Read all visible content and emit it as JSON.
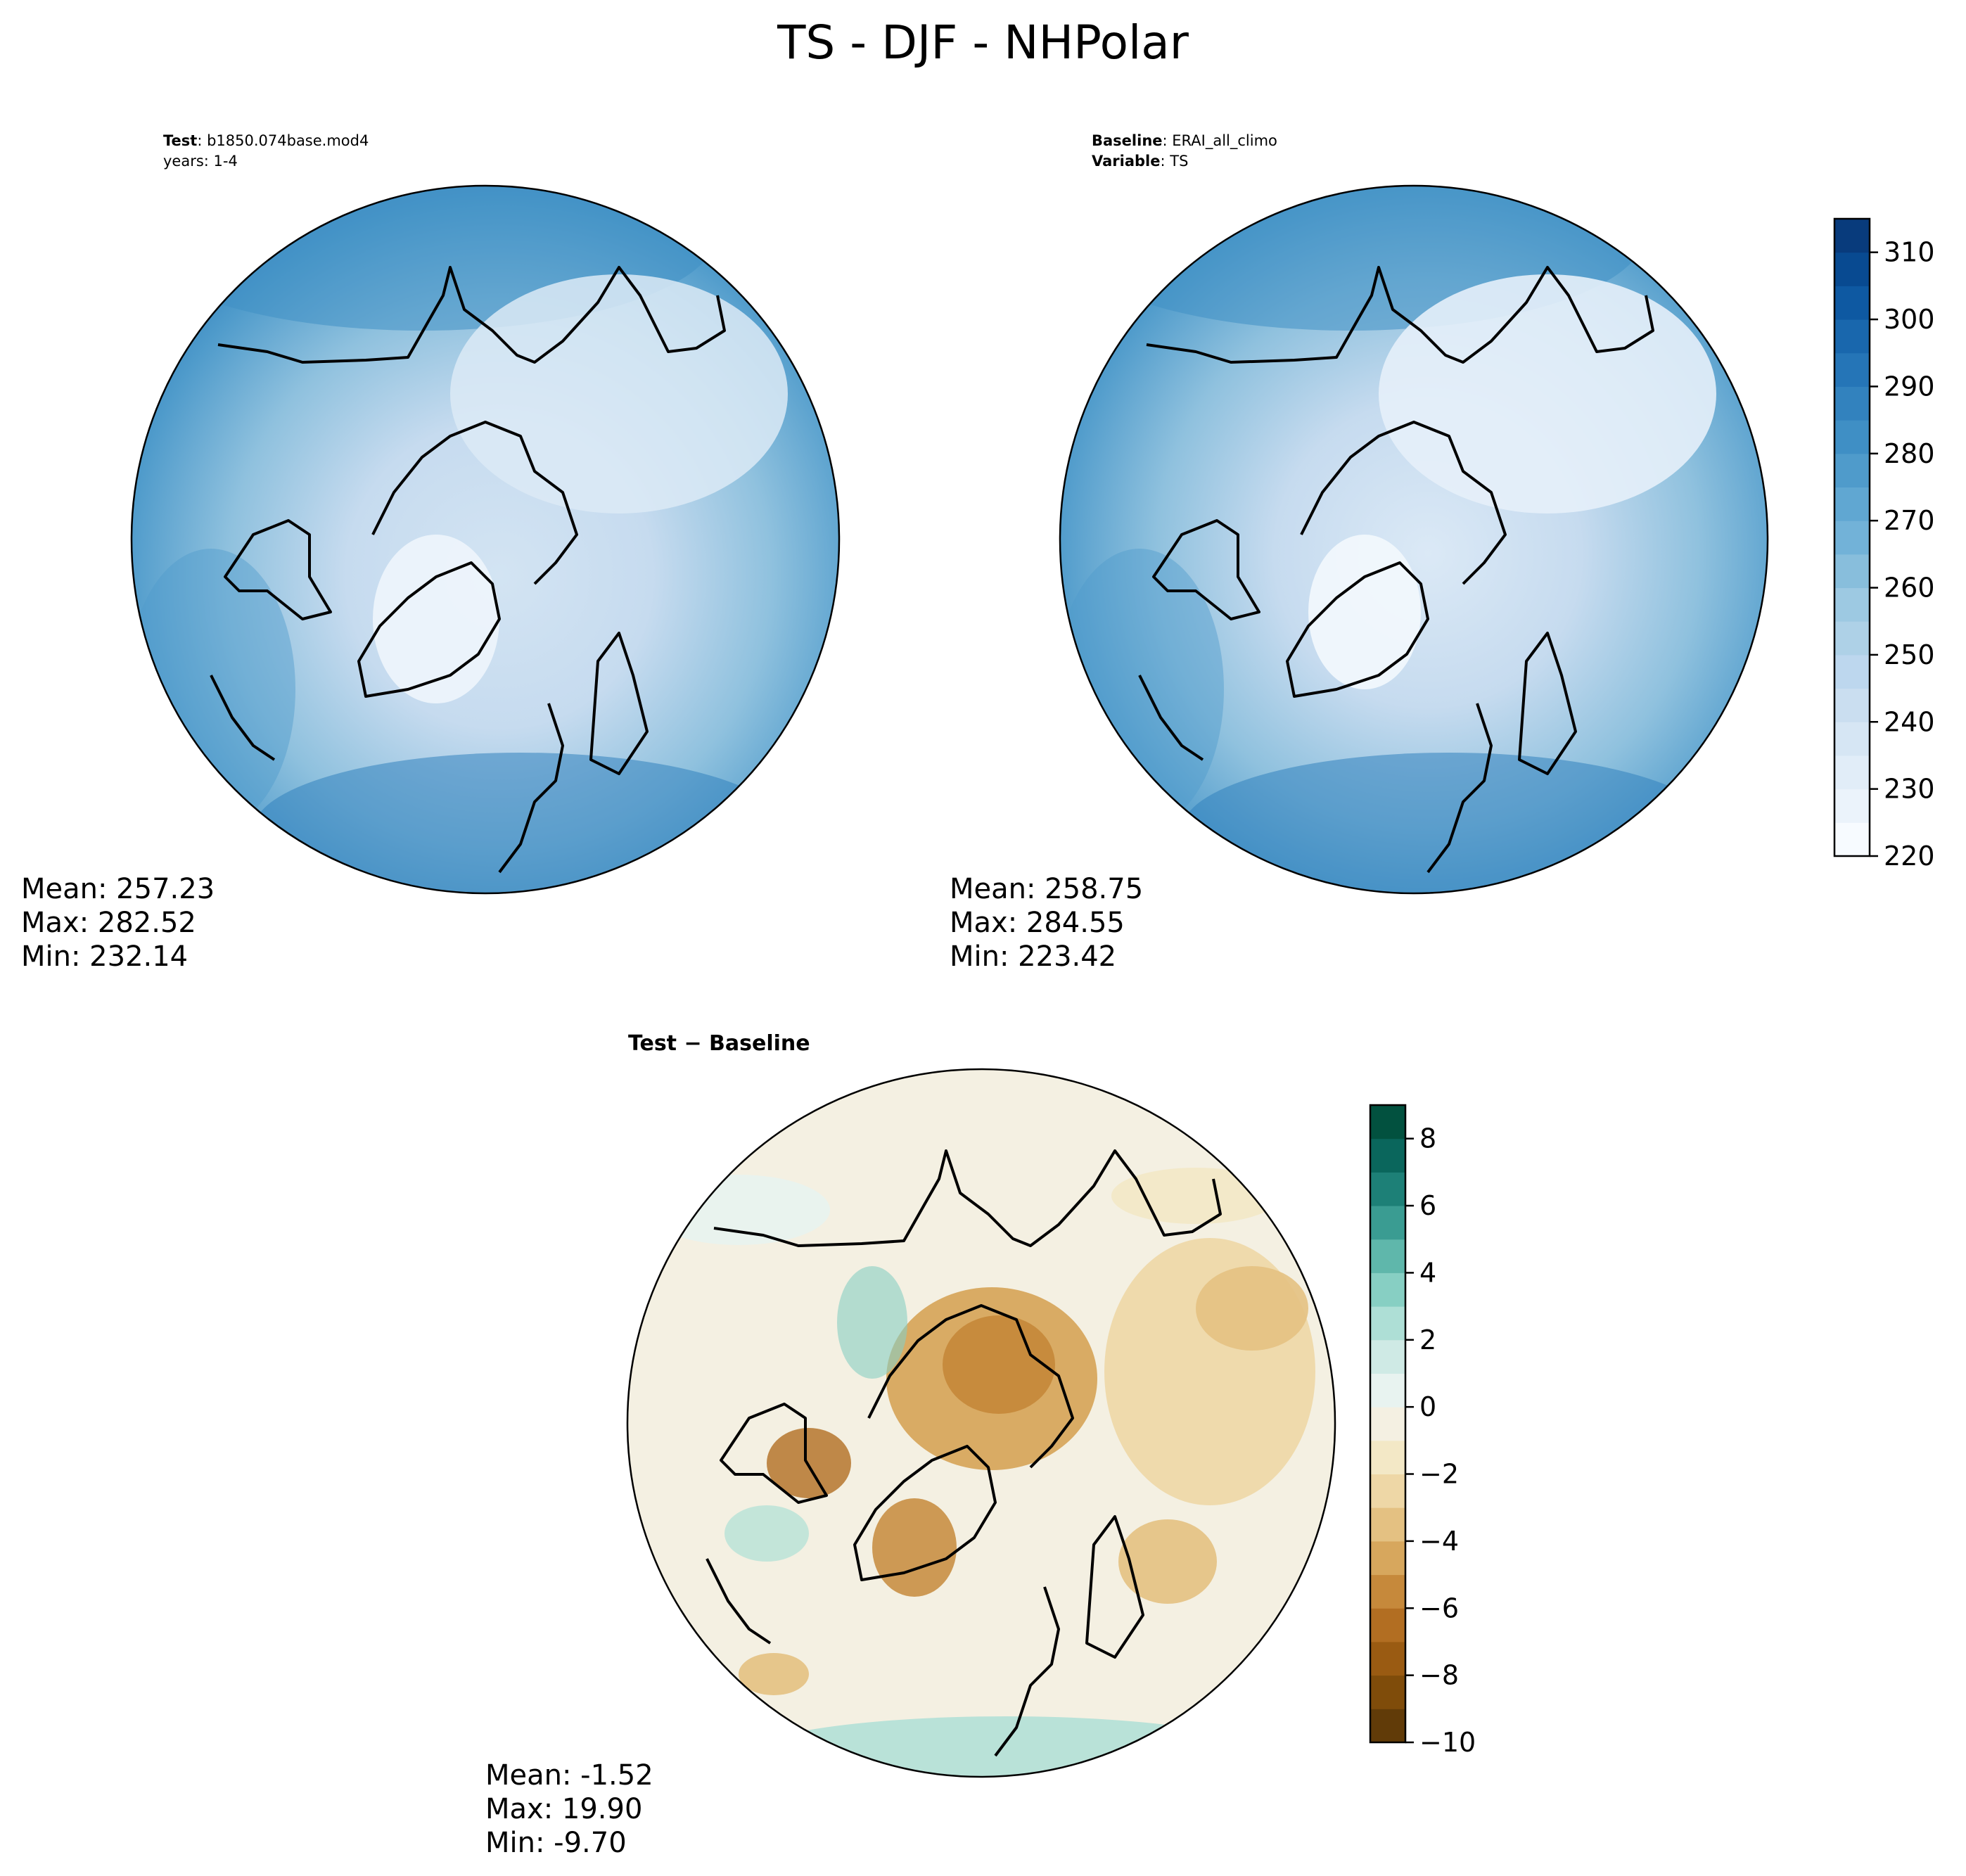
{
  "figure": {
    "title": "TS - DJF - NHPolar"
  },
  "panels": {
    "test": {
      "label_key": "Test",
      "label_value": ": b1850.074base.mod4",
      "line2": "years: 1-4",
      "stats": {
        "mean": "Mean: 257.23",
        "max": "Max: 282.52",
        "min": "Min: 232.14"
      }
    },
    "baseline": {
      "label_key": "Baseline",
      "label_value": ": ERAI_all_climo",
      "line2_key": "Variable",
      "line2_value": ": TS",
      "stats": {
        "mean": "Mean: 258.75",
        "max": "Max: 284.55",
        "min": "Min: 223.42"
      }
    },
    "diff": {
      "title": "Test − Baseline",
      "stats": {
        "mean": "Mean: -1.52",
        "max": "Max: 19.90",
        "min": "Min: -9.70"
      }
    }
  },
  "chart_data": [
    {
      "type": "heatmap",
      "projection": "north polar stereographic",
      "panel": "test",
      "colormap": "Blues",
      "colorbar_shared_with": "baseline",
      "summary": {
        "mean": 257.23,
        "max": 282.52,
        "min": 232.14
      }
    },
    {
      "type": "heatmap",
      "projection": "north polar stereographic",
      "panel": "baseline",
      "colormap": "Blues",
      "summary": {
        "mean": 258.75,
        "max": 284.55,
        "min": 223.42
      },
      "colorbar": {
        "levels": [
          220,
          225,
          230,
          235,
          240,
          245,
          250,
          255,
          260,
          265,
          270,
          275,
          280,
          285,
          290,
          295,
          300,
          305,
          310,
          315
        ],
        "range": [
          220,
          315
        ],
        "ticks": [
          220,
          230,
          240,
          250,
          260,
          270,
          280,
          290,
          300,
          310
        ],
        "tick_labels": [
          "220",
          "230",
          "240",
          "250",
          "260",
          "270",
          "280",
          "290",
          "300",
          "310"
        ],
        "colors": [
          "#f7fbff",
          "#ebf3fb",
          "#e1edf8",
          "#d6e6f4",
          "#cadef0",
          "#bdd7ee",
          "#aed1e7",
          "#9dc9e2",
          "#88bedc",
          "#72b2d8",
          "#60a7d2",
          "#4f9bcb",
          "#3f8fc5",
          "#3282be",
          "#2575b7",
          "#1967ad",
          "#0e59a2",
          "#084a91",
          "#083b7c"
        ]
      }
    },
    {
      "type": "heatmap",
      "projection": "north polar stereographic",
      "panel": "diff",
      "colormap": "BrBG",
      "summary": {
        "mean": -1.52,
        "max": 19.9,
        "min": -9.7
      },
      "colorbar": {
        "levels": [
          -10,
          -9,
          -8,
          -7,
          -6,
          -5,
          -4,
          -3,
          -2,
          -1,
          0,
          1,
          2,
          3,
          4,
          5,
          6,
          7,
          8,
          9
        ],
        "range": [
          -10,
          9
        ],
        "ticks": [
          -10,
          -8,
          -6,
          -4,
          -2,
          0,
          2,
          4,
          6,
          8
        ],
        "tick_labels": [
          "−10",
          "−8",
          "−6",
          "−4",
          "−2",
          "0",
          "2",
          "4",
          "6",
          "8"
        ],
        "colors": [
          "#613b08",
          "#7f4c0a",
          "#9a5b12",
          "#b26e22",
          "#c6893b",
          "#d7a75d",
          "#e4c182",
          "#eed7a6",
          "#f3e8c6",
          "#f4f0e2",
          "#e8f3f0",
          "#cfeae5",
          "#aedfd6",
          "#87cfc3",
          "#5fb7ab",
          "#3a9c92",
          "#1d8077",
          "#0a665c",
          "#02513f"
        ]
      }
    }
  ]
}
